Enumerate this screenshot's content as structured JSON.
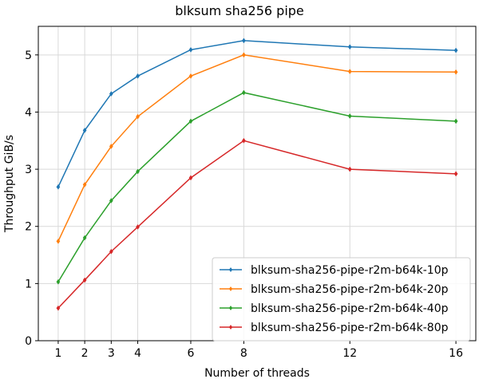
{
  "chart_data": {
    "type": "line",
    "title": "blksum sha256 pipe",
    "xlabel": "Number of threads",
    "ylabel": "Throughput GiB/s",
    "x": [
      1,
      2,
      3,
      4,
      6,
      8,
      12,
      16
    ],
    "xticks": [
      1,
      2,
      3,
      4,
      6,
      8,
      12,
      16
    ],
    "yticks": [
      0,
      1,
      2,
      3,
      4,
      5
    ],
    "xlim": [
      0.25,
      16.75
    ],
    "ylim": [
      0,
      5.5
    ],
    "grid": true,
    "legend_position": "lower-right",
    "series": [
      {
        "name": "blksum-sha256-pipe-r2m-b64k-10p",
        "color": "#1f77b4",
        "values": [
          2.69,
          3.68,
          4.32,
          4.63,
          5.09,
          5.25,
          5.14,
          5.08
        ]
      },
      {
        "name": "blksum-sha256-pipe-r2m-b64k-20p",
        "color": "#ff7f0e",
        "values": [
          1.74,
          2.73,
          3.4,
          3.92,
          4.63,
          5.0,
          4.71,
          4.7
        ]
      },
      {
        "name": "blksum-sha256-pipe-r2m-b64k-40p",
        "color": "#2ca02c",
        "values": [
          1.03,
          1.8,
          2.45,
          2.96,
          3.84,
          4.34,
          3.93,
          3.84
        ]
      },
      {
        "name": "blksum-sha256-pipe-r2m-b64k-80p",
        "color": "#d62728",
        "values": [
          0.57,
          1.06,
          1.56,
          1.99,
          2.85,
          3.5,
          3.0,
          2.92
        ]
      }
    ]
  }
}
